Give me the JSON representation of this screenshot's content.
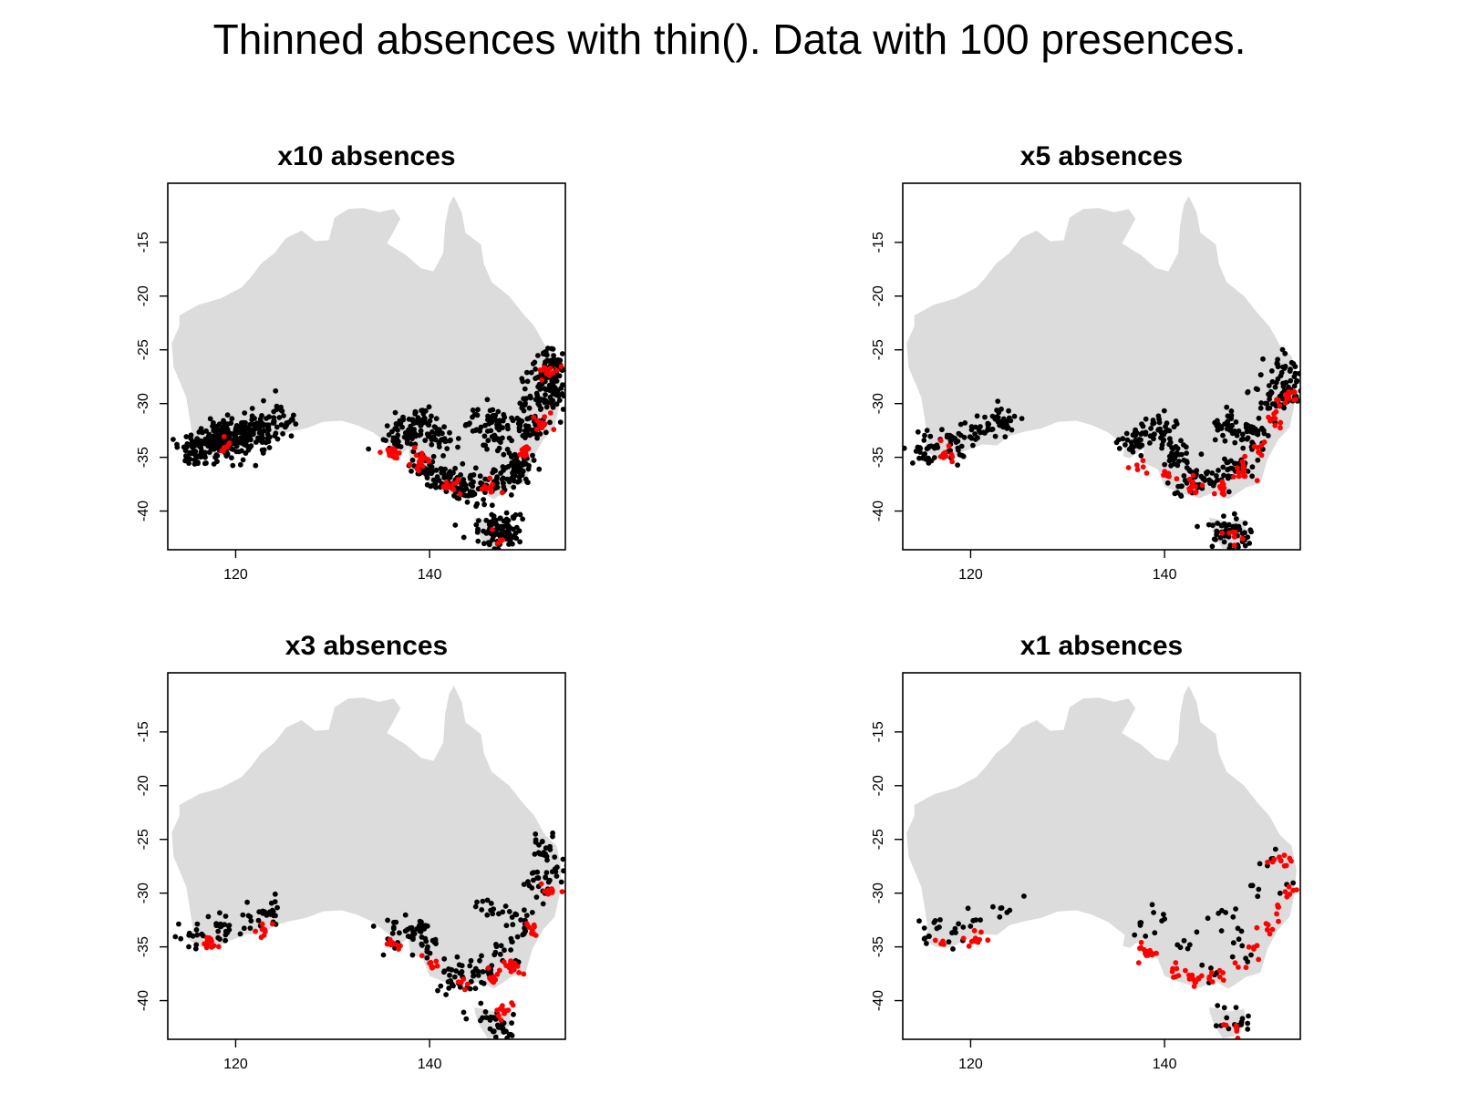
{
  "title": "Thinned absences with thin(). Data with 100 presences.",
  "colors": {
    "land": "#dcdcdc",
    "absence": "#000000",
    "presence": "#ff0000",
    "frame": "#000000"
  },
  "chart_data": [
    {
      "type": "scatter",
      "title": "x10 absences",
      "xlabel": "",
      "ylabel": "",
      "xlim": [
        113,
        154
      ],
      "ylim": [
        -43.6,
        -9.5
      ],
      "xticks": [
        120,
        140
      ],
      "yticks": [
        -15,
        -20,
        -25,
        -30,
        -35,
        -40
      ],
      "grid": false,
      "series": [
        {
          "color": "black",
          "count": 1000,
          "points": [
            [
              115.5,
              -34
            ],
            [
              117.2,
              -33.6
            ],
            [
              119,
              -32.8
            ],
            [
              121,
              -32.5
            ],
            [
              123,
              -32
            ],
            [
              124.5,
              -31.3
            ],
            [
              116.5,
              -34.6
            ],
            [
              118.2,
              -34.1
            ],
            [
              120.4,
              -33.6
            ],
            [
              122.3,
              -33.2
            ],
            [
              136.5,
              -33.3
            ],
            [
              138.4,
              -32.4
            ],
            [
              139.8,
              -31.9
            ],
            [
              141,
              -33.6
            ],
            [
              139.5,
              -36.1
            ],
            [
              141.5,
              -36.9
            ],
            [
              143.3,
              -37.6
            ],
            [
              145.2,
              -37.9
            ],
            [
              146.8,
              -37.4
            ],
            [
              148.6,
              -36.8
            ],
            [
              146,
              -31.5
            ],
            [
              147.5,
              -33.2
            ],
            [
              149.3,
              -35.6
            ],
            [
              150.3,
              -32.4
            ],
            [
              151.2,
              -30
            ],
            [
              151.8,
              -27.6
            ],
            [
              152.5,
              -26
            ],
            [
              153.2,
              -28.8
            ],
            [
              146.3,
              -41.6
            ],
            [
              147.3,
              -42.4
            ],
            [
              148,
              -41.4
            ]
          ]
        },
        {
          "color": "red",
          "count": 100,
          "points": [
            [
              118.8,
              -34.1
            ],
            [
              136.3,
              -34.5
            ],
            [
              139.2,
              -35.4
            ],
            [
              142.3,
              -37.9
            ],
            [
              146.2,
              -37.8
            ],
            [
              149.8,
              -34.6
            ],
            [
              151.6,
              -31.8
            ],
            [
              152.2,
              -27
            ],
            [
              147.3,
              -42.7
            ]
          ]
        }
      ]
    },
    {
      "type": "scatter",
      "title": "x5 absences",
      "xlabel": "",
      "ylabel": "",
      "xlim": [
        113,
        154
      ],
      "ylim": [
        -43.6,
        -9.5
      ],
      "xticks": [
        120,
        140
      ],
      "yticks": [
        -15,
        -20,
        -25,
        -30,
        -35,
        -40
      ],
      "grid": false,
      "series": [
        {
          "color": "black",
          "count": 500,
          "points": [
            [
              115.5,
              -34.2
            ],
            [
              118.5,
              -33.6
            ],
            [
              121,
              -32.7
            ],
            [
              123.4,
              -31.6
            ],
            [
              137,
              -33.4
            ],
            [
              139.4,
              -32.4
            ],
            [
              141.2,
              -34.8
            ],
            [
              142.3,
              -37.4
            ],
            [
              144.6,
              -37.1
            ],
            [
              146.2,
              -31.9
            ],
            [
              147.5,
              -35.6
            ],
            [
              149.5,
              -32.8
            ],
            [
              150.8,
              -29.6
            ],
            [
              152.2,
              -26.6
            ],
            [
              153,
              -28.7
            ],
            [
              146.3,
              -41.8
            ],
            [
              147.5,
              -42.3
            ]
          ]
        },
        {
          "color": "red",
          "count": 100,
          "points": [
            [
              117.3,
              -34.6
            ],
            [
              137.8,
              -35.9
            ],
            [
              140.4,
              -36.5
            ],
            [
              142.8,
              -37.7
            ],
            [
              145.8,
              -37.9
            ],
            [
              148.2,
              -36.3
            ],
            [
              149.6,
              -34.1
            ],
            [
              151.4,
              -31.4
            ],
            [
              152.6,
              -29.5
            ],
            [
              147.2,
              -42.4
            ]
          ]
        }
      ]
    },
    {
      "type": "scatter",
      "title": "x3 absences",
      "xlabel": "",
      "ylabel": "",
      "xlim": [
        113,
        154
      ],
      "ylim": [
        -43.6,
        -9.5
      ],
      "xticks": [
        120,
        140
      ],
      "yticks": [
        -15,
        -20,
        -25,
        -30,
        -35,
        -40
      ],
      "grid": false,
      "series": [
        {
          "color": "black",
          "count": 300,
          "points": [
            [
              115.6,
              -34
            ],
            [
              118.5,
              -33.1
            ],
            [
              121.5,
              -32.2
            ],
            [
              123.8,
              -31.6
            ],
            [
              136.3,
              -33.3
            ],
            [
              138.3,
              -33.6
            ],
            [
              139.8,
              -35
            ],
            [
              142.6,
              -37.8
            ],
            [
              145,
              -37.3
            ],
            [
              146.3,
              -31.6
            ],
            [
              147.7,
              -35.3
            ],
            [
              149.4,
              -32.5
            ],
            [
              150.7,
              -28.8
            ],
            [
              152,
              -25.8
            ],
            [
              153,
              -28
            ],
            [
              146.2,
              -41.6
            ],
            [
              147.5,
              -42.6
            ]
          ]
        },
        {
          "color": "red",
          "count": 100,
          "points": [
            [
              117.5,
              -34.5
            ],
            [
              123,
              -33.4
            ],
            [
              136,
              -34.8
            ],
            [
              140.2,
              -36.8
            ],
            [
              143.5,
              -38
            ],
            [
              146.6,
              -37.8
            ],
            [
              148.6,
              -36.6
            ],
            [
              150.6,
              -33.5
            ],
            [
              152.4,
              -29.8
            ],
            [
              147.7,
              -41.2
            ]
          ]
        }
      ]
    },
    {
      "type": "scatter",
      "title": "x1 absences",
      "xlabel": "",
      "ylabel": "",
      "xlim": [
        113,
        154
      ],
      "ylim": [
        -43.6,
        -9.5
      ],
      "xticks": [
        120,
        140
      ],
      "yticks": [
        -15,
        -20,
        -25,
        -30,
        -35,
        -40
      ],
      "grid": false,
      "series": [
        {
          "color": "black",
          "count": 100,
          "points": [
            [
              115.7,
              -34
            ],
            [
              118.4,
              -33.3
            ],
            [
              121,
              -32.5
            ],
            [
              123.1,
              -31.4
            ],
            [
              137.5,
              -33
            ],
            [
              140,
              -32.4
            ],
            [
              142.6,
              -34.8
            ],
            [
              145.4,
              -37.4
            ],
            [
              146.3,
              -31.8
            ],
            [
              148,
              -34.9
            ],
            [
              149.6,
              -30.3
            ],
            [
              151.2,
              -26.8
            ],
            [
              152.6,
              -29.2
            ],
            [
              146.4,
              -41.6
            ],
            [
              147.6,
              -42.3
            ]
          ]
        },
        {
          "color": "red",
          "count": 100,
          "points": [
            [
              117,
              -34.7
            ],
            [
              120.5,
              -34.2
            ],
            [
              138,
              -35.6
            ],
            [
              140.8,
              -37.3
            ],
            [
              143.2,
              -38.3
            ],
            [
              145.7,
              -37.8
            ],
            [
              147.6,
              -36.9
            ],
            [
              149.2,
              -35.2
            ],
            [
              150.6,
              -33.4
            ],
            [
              151.7,
              -31.3
            ],
            [
              152.9,
              -30.1
            ],
            [
              152,
              -27
            ],
            [
              147.4,
              -42.5
            ]
          ]
        }
      ]
    }
  ]
}
